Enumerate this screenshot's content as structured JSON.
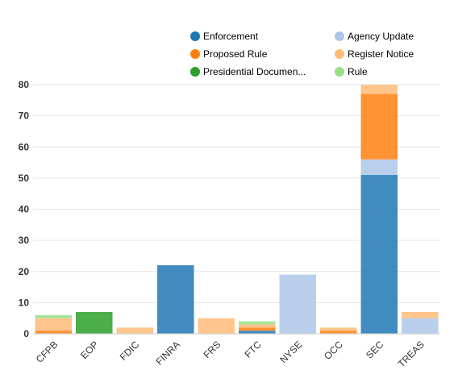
{
  "chart_data": {
    "type": "bar",
    "stacked": true,
    "categories": [
      "CFPB",
      "EOP",
      "FDIC",
      "FINRA",
      "FRS",
      "FTC",
      "NYSE",
      "OCC",
      "SEC",
      "TREAS"
    ],
    "series": [
      {
        "name": "Enforcement",
        "color": "#1f77b4",
        "values": [
          0,
          0,
          0,
          22,
          0,
          1,
          0,
          0,
          51,
          0
        ]
      },
      {
        "name": "Agency Update",
        "color": "#aec7e8",
        "values": [
          0,
          0,
          0,
          0,
          0,
          0,
          19,
          0,
          5,
          5
        ]
      },
      {
        "name": "Proposed Rule",
        "color": "#ff7f0e",
        "values": [
          1,
          0,
          0,
          0,
          0,
          1,
          0,
          1,
          21,
          0
        ]
      },
      {
        "name": "Register Notice",
        "color": "#ffbb78",
        "values": [
          4,
          0,
          2,
          0,
          5,
          1,
          0,
          1,
          3,
          2
        ]
      },
      {
        "name": "Presidential Documen...",
        "color": "#2ca02c",
        "values": [
          0,
          7,
          0,
          0,
          0,
          0,
          0,
          0,
          0,
          0
        ]
      },
      {
        "name": "Rule",
        "color": "#98df8a",
        "values": [
          1,
          0,
          0,
          0,
          0,
          1,
          0,
          0,
          0,
          0
        ]
      }
    ],
    "legend_order": [
      "Enforcement",
      "Agency Update",
      "Proposed Rule",
      "Register Notice",
      "Presidential Documen...",
      "Rule"
    ],
    "legend_position": "top-right",
    "ylim": [
      0,
      80
    ],
    "yticks": [
      0,
      10,
      20,
      30,
      40,
      50,
      60,
      70,
      80
    ],
    "grid": true,
    "xlabel": "",
    "ylabel": "",
    "title": ""
  }
}
